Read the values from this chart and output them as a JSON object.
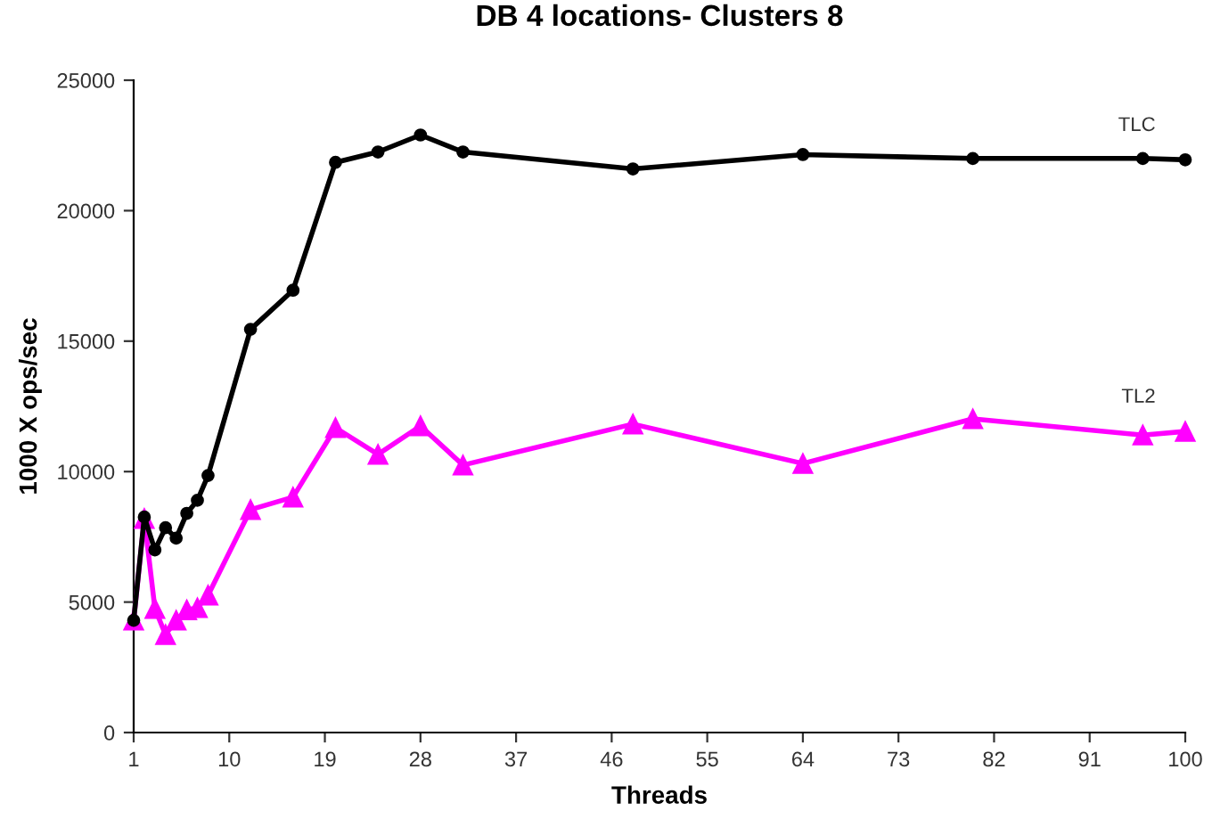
{
  "chart_data": {
    "type": "line",
    "title": "DB 4 locations- Clusters 8",
    "xlabel": "Threads",
    "ylabel": "1000 X ops/sec",
    "xlim": [
      1,
      100
    ],
    "xticks": [
      1,
      10,
      19,
      28,
      37,
      46,
      55,
      64,
      73,
      82,
      91,
      100
    ],
    "ylim": [
      0,
      25000
    ],
    "yticks": [
      0,
      5000,
      10000,
      15000,
      20000,
      25000
    ],
    "grid": false,
    "legend": false,
    "line_style": "solid",
    "series": [
      {
        "name": "TLC",
        "color": "#000000",
        "marker": "circle",
        "x": [
          1,
          2,
          3,
          4,
          5,
          6,
          7,
          8,
          12,
          16,
          20,
          24,
          28,
          32,
          48,
          64,
          80,
          96,
          100
        ],
        "values": [
          4300,
          8260,
          7000,
          7850,
          7450,
          8400,
          8900,
          9850,
          15450,
          16950,
          21850,
          22250,
          22900,
          22250,
          21600,
          22150,
          22000,
          22000,
          21950
        ]
      },
      {
        "name": "TL2",
        "color": "#ff00ff",
        "marker": "triangle",
        "x": [
          1,
          2,
          3,
          4,
          5,
          6,
          7,
          8,
          12,
          16,
          20,
          24,
          28,
          32,
          48,
          64,
          80,
          96,
          100
        ],
        "values": [
          4300,
          8200,
          4750,
          3750,
          4300,
          4700,
          4780,
          5260,
          8540,
          9020,
          11680,
          10660,
          11750,
          10250,
          11820,
          10310,
          12020,
          11400,
          11540
        ]
      }
    ]
  }
}
